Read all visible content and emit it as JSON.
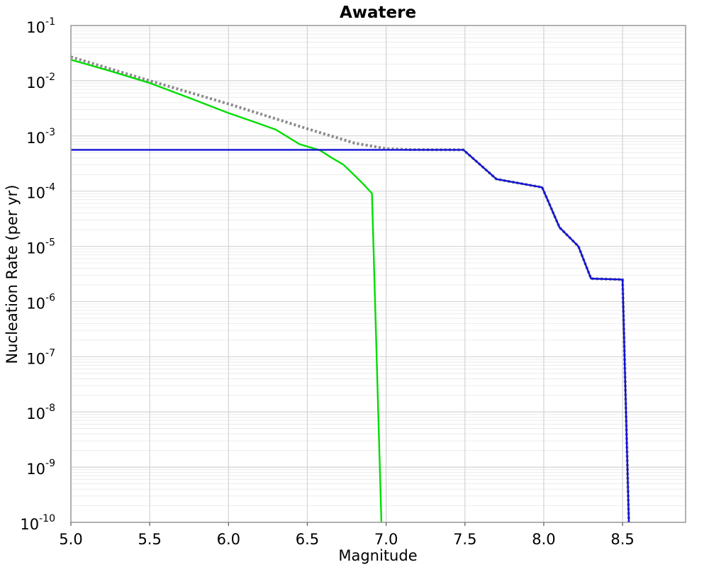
{
  "title": "Awatere",
  "x_axis": {
    "label": "Magnitude",
    "ticks": [
      {
        "value": 5.0,
        "label": "5.0"
      },
      {
        "value": 5.5,
        "label": "5.5"
      },
      {
        "value": 6.0,
        "label": "6.0"
      },
      {
        "value": 6.5,
        "label": "6.5"
      },
      {
        "value": 7.0,
        "label": "7.0"
      },
      {
        "value": 7.5,
        "label": "7.5"
      },
      {
        "value": 8.0,
        "label": "8.0"
      },
      {
        "value": 8.5,
        "label": "8.5"
      }
    ]
  },
  "y_axis": {
    "label": "Nucleation Rate (per yr)",
    "ticks": [
      {
        "exponent": -1,
        "base": "10",
        "exp_label": "-1"
      },
      {
        "exponent": -2,
        "base": "10",
        "exp_label": "-2"
      },
      {
        "exponent": -3,
        "base": "10",
        "exp_label": "-3"
      },
      {
        "exponent": -4,
        "base": "10",
        "exp_label": "-4"
      },
      {
        "exponent": -5,
        "base": "10",
        "exp_label": "-5"
      },
      {
        "exponent": -6,
        "base": "10",
        "exp_label": "-6"
      },
      {
        "exponent": -7,
        "base": "10",
        "exp_label": "-7"
      },
      {
        "exponent": -8,
        "base": "10",
        "exp_label": "-8"
      },
      {
        "exponent": -9,
        "base": "10",
        "exp_label": "-9"
      },
      {
        "exponent": -10,
        "base": "10",
        "exp_label": "-10"
      }
    ]
  },
  "chart_data": {
    "type": "line",
    "title": "Awatere",
    "xlabel": "Magnitude",
    "ylabel": "Nucleation Rate (per yr)",
    "xlim": [
      5.0,
      8.9
    ],
    "ylim": [
      1e-10,
      0.1
    ],
    "y_scale": "log10",
    "grid": true,
    "legend_position": "none",
    "colors": {
      "green_line": "#00dd00",
      "gray_dotted_line": "#8a8a8a",
      "blue_line": "#1111d6",
      "major_grid": "#d4d4d4",
      "minor_grid": "#ececec",
      "plot_border": "#999999"
    },
    "series": [
      {
        "name": "green-line",
        "color": "#00dd00",
        "style": "solid",
        "width": 2.4,
        "points": [
          [
            5.0,
            0.024
          ],
          [
            5.25,
            0.015
          ],
          [
            5.5,
            0.0091
          ],
          [
            5.75,
            0.0049
          ],
          [
            6.0,
            0.0026
          ],
          [
            6.15,
            0.00185
          ],
          [
            6.3,
            0.0013
          ],
          [
            6.45,
            0.00071
          ],
          [
            6.58,
            0.00055
          ],
          [
            6.65,
            0.00041
          ],
          [
            6.73,
            0.0003
          ],
          [
            6.81,
            0.00018
          ],
          [
            6.86,
            0.00013
          ],
          [
            6.91,
            9.1e-05
          ],
          [
            6.97,
            1e-10
          ]
        ]
      },
      {
        "name": "gray-dotted-line",
        "color": "#8a8a8a",
        "style": "dotted",
        "width": 4,
        "points": [
          [
            5.0,
            0.027
          ],
          [
            5.5,
            0.01
          ],
          [
            6.0,
            0.0038
          ],
          [
            6.5,
            0.00135
          ],
          [
            6.8,
            0.00074
          ],
          [
            7.0,
            0.00059
          ],
          [
            7.15,
            0.000565
          ],
          [
            7.49,
            0.00056
          ],
          [
            7.7,
            0.000165
          ],
          [
            7.99,
            0.000117
          ],
          [
            8.1,
            2.2e-05
          ],
          [
            8.22,
            1e-05
          ],
          [
            8.3,
            2.6e-06
          ],
          [
            8.5,
            2.5e-06
          ],
          [
            8.54,
            1e-10
          ]
        ]
      },
      {
        "name": "blue-line",
        "color": "#1111d6",
        "style": "solid",
        "width": 2.4,
        "points": [
          [
            5.0,
            0.00056
          ],
          [
            7.49,
            0.00056
          ],
          [
            7.7,
            0.000165
          ],
          [
            7.99,
            0.000117
          ],
          [
            8.1,
            2.2e-05
          ],
          [
            8.22,
            1e-05
          ],
          [
            8.3,
            2.6e-06
          ],
          [
            8.5,
            2.5e-06
          ],
          [
            8.54,
            1e-10
          ]
        ]
      }
    ]
  }
}
